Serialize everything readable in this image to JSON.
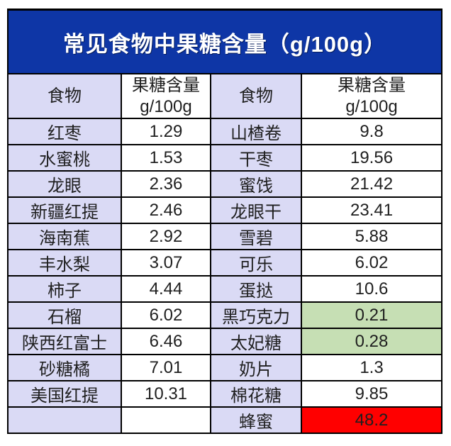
{
  "title": "常见食物中果糖含量（g/100g）",
  "header": {
    "food_label": "食物",
    "content_line1": "果糖含量",
    "content_line2": "g/100g"
  },
  "colors": {
    "title_bg": "#0e36a6",
    "title_text": "#ffffff",
    "food_cell_bg": "#dadaf5",
    "value_cell_bg": "#ffffff",
    "highlight_green": "#c6dfb4",
    "highlight_red": "#ff0000",
    "border": "#000000",
    "text": "#1f1f1f"
  },
  "chart_data": {
    "type": "table",
    "title": "常见食物中果糖含量（g/100g）",
    "unit": "g/100g",
    "columns": [
      "食物",
      "果糖含量 g/100g",
      "食物",
      "果糖含量 g/100g"
    ],
    "rows": [
      {
        "food1": "红枣",
        "value1": "1.29",
        "food2": "山楂卷",
        "value2": "9.8",
        "highlight2": null
      },
      {
        "food1": "水蜜桃",
        "value1": "1.53",
        "food2": "干枣",
        "value2": "19.56",
        "highlight2": null
      },
      {
        "food1": "龙眼",
        "value1": "2.36",
        "food2": "蜜饯",
        "value2": "21.42",
        "highlight2": null
      },
      {
        "food1": "新疆红提",
        "value1": "2.46",
        "food2": "龙眼干",
        "value2": "23.41",
        "highlight2": null
      },
      {
        "food1": "海南蕉",
        "value1": "2.92",
        "food2": "雪碧",
        "value2": "5.88",
        "highlight2": null
      },
      {
        "food1": "丰水梨",
        "value1": "3.07",
        "food2": "可乐",
        "value2": "6.02",
        "highlight2": null
      },
      {
        "food1": "柿子",
        "value1": "4.44",
        "food2": "蛋挞",
        "value2": "10.6",
        "highlight2": null
      },
      {
        "food1": "石榴",
        "value1": "6.02",
        "food2": "黑巧克力",
        "value2": "0.21",
        "highlight2": "green"
      },
      {
        "food1": "陕西红富士",
        "value1": "6.46",
        "food2": "太妃糖",
        "value2": "0.28",
        "highlight2": "green"
      },
      {
        "food1": "砂糖橘",
        "value1": "7.01",
        "food2": "奶片",
        "value2": "1.3",
        "highlight2": null
      },
      {
        "food1": "美国红提",
        "value1": "10.31",
        "food2": "棉花糖",
        "value2": "9.85",
        "highlight2": null
      },
      {
        "food1": "",
        "value1": "",
        "food2": "蜂蜜",
        "value2": "48.2",
        "highlight2": "red"
      }
    ]
  }
}
